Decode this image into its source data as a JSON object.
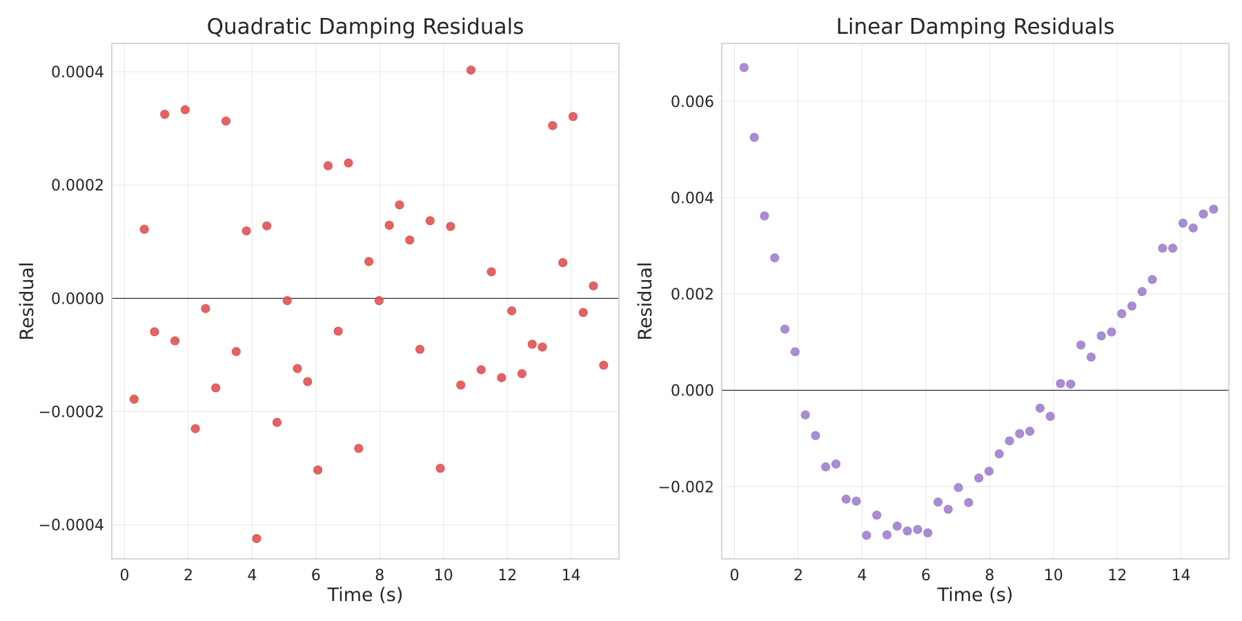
{
  "chart_data": [
    {
      "type": "scatter",
      "title": "Quadratic Damping Residuals",
      "xlabel": "Time (s)",
      "ylabel": "Residual",
      "xlim": [
        -0.4,
        15.5
      ],
      "ylim": [
        -0.00046,
        0.00045
      ],
      "xticks": [
        0,
        2,
        4,
        6,
        8,
        10,
        12,
        14
      ],
      "yticks": [
        -0.0004,
        -0.0002,
        0.0,
        0.0002,
        0.0004
      ],
      "ytick_labels": [
        "−0.0004",
        "−0.0002",
        "0.0000",
        "0.0002",
        "0.0004"
      ],
      "grid": true,
      "zero_line": true,
      "color": "#e05252",
      "series": [
        {
          "x": [
            0.3,
            0.62,
            0.94,
            1.26,
            1.58,
            1.9,
            2.22,
            2.54,
            2.86,
            3.18,
            3.5,
            3.82,
            4.14,
            4.46,
            4.78,
            5.1,
            5.42,
            5.74,
            6.06,
            6.38,
            6.7,
            7.02,
            7.34,
            7.66,
            7.98,
            8.3,
            8.62,
            8.94,
            9.26,
            9.58,
            9.9,
            10.22,
            10.54,
            10.86,
            11.18,
            11.5,
            11.82,
            12.14,
            12.46,
            12.78,
            13.1,
            13.42,
            13.74,
            14.06,
            14.38,
            14.7,
            15.02
          ],
          "y": [
            -0.000178,
            0.000122,
            -5.9e-05,
            0.000325,
            -7.5e-05,
            0.000333,
            -0.00023,
            -1.8e-05,
            -0.000158,
            0.000313,
            -9.4e-05,
            0.000119,
            -0.000424,
            0.000128,
            -0.000219,
            -4e-06,
            -0.000124,
            -0.000147,
            -0.000303,
            0.000234,
            -5.8e-05,
            0.000239,
            -0.000265,
            6.5e-05,
            -4e-06,
            0.000129,
            0.000165,
            0.000103,
            -9e-05,
            0.000137,
            -0.0003,
            0.000127,
            -0.000153,
            0.000403,
            -0.000126,
            4.7e-05,
            -0.00014,
            -2.2e-05,
            -0.000133,
            -8.1e-05,
            -8.6e-05,
            0.000305,
            6.3e-05,
            0.000321,
            -2.5e-05,
            2.2e-05,
            -0.000118
          ]
        }
      ]
    },
    {
      "type": "scatter",
      "title": "Linear Damping Residuals",
      "xlabel": "Time (s)",
      "ylabel": "Residual",
      "xlim": [
        -0.4,
        15.5
      ],
      "ylim": [
        -0.0035,
        0.0072
      ],
      "xticks": [
        0,
        2,
        4,
        6,
        8,
        10,
        12,
        14
      ],
      "yticks": [
        -0.002,
        0.0,
        0.002,
        0.004,
        0.006
      ],
      "ytick_labels": [
        "−0.002",
        "0.000",
        "0.002",
        "0.004",
        "0.006"
      ],
      "grid": true,
      "zero_line": true,
      "color": "#a07fcf",
      "series": [
        {
          "x": [
            0.3,
            0.62,
            0.94,
            1.26,
            1.58,
            1.9,
            2.22,
            2.54,
            2.86,
            3.18,
            3.5,
            3.82,
            4.14,
            4.46,
            4.78,
            5.1,
            5.42,
            5.74,
            6.06,
            6.38,
            6.7,
            7.02,
            7.34,
            7.66,
            7.98,
            8.3,
            8.62,
            8.94,
            9.26,
            9.58,
            9.9,
            10.22,
            10.54,
            10.86,
            11.18,
            11.5,
            11.82,
            12.14,
            12.46,
            12.78,
            13.1,
            13.42,
            13.74,
            14.06,
            14.38,
            14.7,
            15.02
          ],
          "y": [
            0.0067,
            0.00525,
            0.00362,
            0.00275,
            0.00127,
            0.0008,
            -0.00051,
            -0.00094,
            -0.00159,
            -0.00153,
            -0.00226,
            -0.0023,
            -0.00301,
            -0.00259,
            -0.003,
            -0.00282,
            -0.00292,
            -0.00289,
            -0.00296,
            -0.00232,
            -0.00247,
            -0.00202,
            -0.00233,
            -0.00182,
            -0.00168,
            -0.00132,
            -0.00105,
            -0.0009,
            -0.00085,
            -0.00037,
            -0.00054,
            0.00014,
            0.00013,
            0.00094,
            0.00069,
            0.00113,
            0.00121,
            0.00159,
            0.00175,
            0.00205,
            0.0023,
            0.00295,
            0.00295,
            0.00347,
            0.00337,
            0.00366,
            0.00376
          ]
        }
      ]
    }
  ]
}
